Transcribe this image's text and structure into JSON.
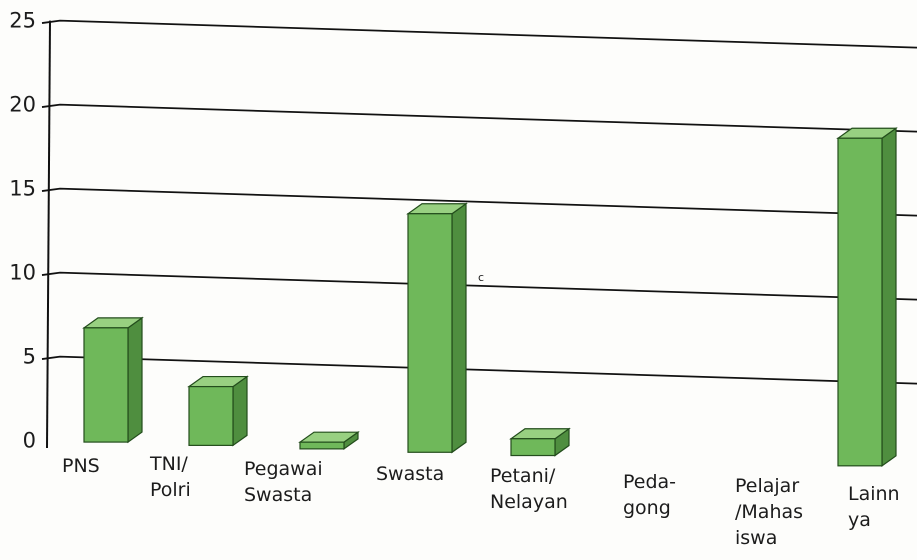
{
  "chart_data": {
    "type": "bar",
    "title": "",
    "xlabel": "",
    "ylabel": "",
    "categories": [
      [
        "PNS"
      ],
      [
        "TNI/",
        "Polri"
      ],
      [
        "Pegawai",
        "Swasta"
      ],
      [
        "Swasta"
      ],
      [
        "Petani/",
        "Nelayan"
      ],
      [
        "Peda-",
        "gong"
      ],
      [
        "Pelajar",
        "/Mahas",
        "iswa"
      ],
      [
        "Lainn",
        "ya"
      ]
    ],
    "values": [
      6.8,
      3.5,
      0.4,
      14.2,
      1.0,
      0,
      0,
      19.5
    ],
    "ylim": [
      0,
      25
    ],
    "yticks": [
      "0",
      "5",
      "10",
      "15",
      "20",
      "25"
    ],
    "grid": true,
    "legend": "none",
    "bar_style": "3d",
    "stray_mark": "c"
  },
  "colors": {
    "bar_front": "#6fb85a",
    "bar_side": "#4f8e3f",
    "bar_top": "#98d081",
    "bar_edge": "#234d1c",
    "grid": "#111111"
  }
}
